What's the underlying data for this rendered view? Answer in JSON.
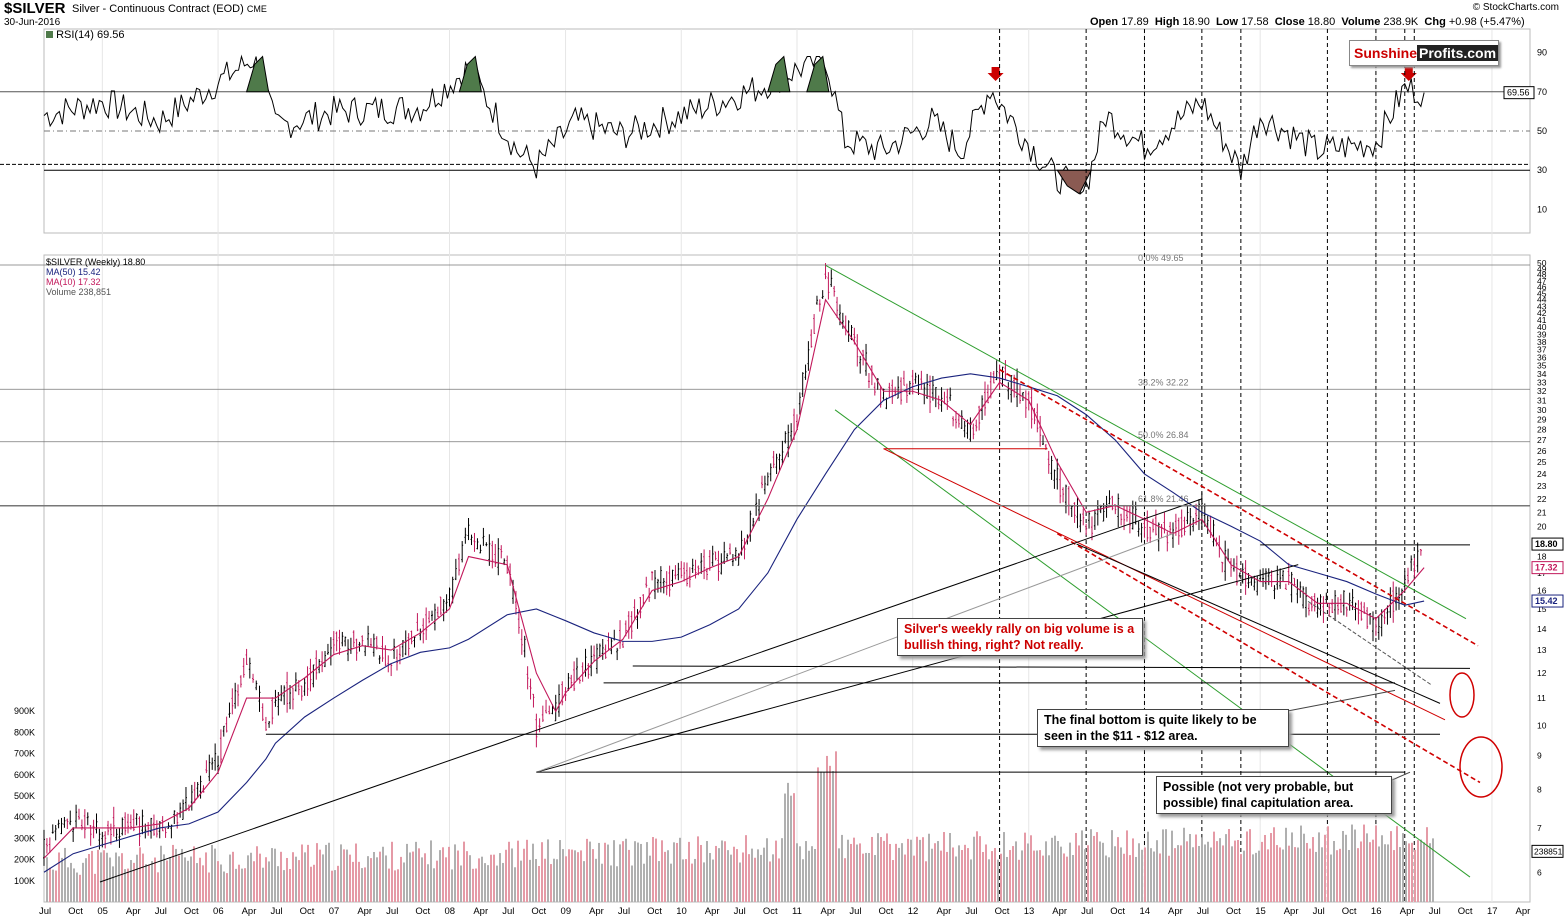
{
  "header": {
    "ticker": "$SILVER",
    "description": "Silver - Continuous Contract (EOD)",
    "exchange": "CME",
    "date": "30-Jun-2016",
    "ohlc": {
      "open_label": "Open",
      "open": "17.89",
      "high_label": "High",
      "high": "18.90",
      "low_label": "Low",
      "low": "17.58",
      "close_label": "Close",
      "close": "18.80",
      "volume_label": "Volume",
      "volume": "238.9K",
      "chg_label": "Chg",
      "chg": "+0.98 (+5.47%)"
    },
    "copyright": "© StockCharts.com"
  },
  "logo": {
    "part1": "Sunshine",
    "part2": "Profits.com"
  },
  "colors": {
    "rsi_line": "#000000",
    "overbought_fill": "#4f7a4a",
    "oversold_fill": "#8a5a52",
    "ma50": "#1a237e",
    "ma10": "#c2185b",
    "up_candle": "#000000",
    "down_candle": "#c2185b",
    "vol_up": "#b0b0b0",
    "vol_down": "#e59aa6",
    "green_channel": "#2e9e2e",
    "red_line": "#d00000",
    "arrow": "#cc0000"
  },
  "rsi_panel": {
    "legend": "RSI(14) 69.56",
    "value_tag": "69.56",
    "y_ticks": [
      "90",
      "70",
      "50",
      "30",
      "10"
    ]
  },
  "price_panel": {
    "legend": {
      "main": "$SILVER (Weekly) 18.80",
      "ma50": "MA(50) 15.42",
      "ma10": "MA(10) 17.32",
      "volume": "Volume 238,851"
    },
    "y_ticks": [
      "50",
      "49",
      "48",
      "47",
      "46",
      "45",
      "44",
      "43",
      "42",
      "41",
      "40",
      "39",
      "38",
      "37",
      "36",
      "35",
      "34",
      "33",
      "32",
      "31",
      "30",
      "29",
      "28",
      "27",
      "26",
      "25",
      "24",
      "23",
      "22",
      "21",
      "20",
      "19",
      "18",
      "17",
      "16",
      "15",
      "14",
      "13",
      "12",
      "11",
      "10",
      "9",
      "8",
      "7",
      "6"
    ],
    "price_tags": {
      "close": "18.80",
      "ma10": "17.32",
      "ma50": "15.42",
      "volume": "238851"
    },
    "fib_levels": [
      {
        "label": "0.0% 49.65",
        "price": 49.65
      },
      {
        "label": "38.2% 32.22",
        "price": 32.22
      },
      {
        "label": "50.0% 26.84",
        "price": 26.84
      },
      {
        "label": "61.8% 21.46",
        "price": 21.46
      }
    ],
    "volume_ticks": [
      "900K",
      "800K",
      "700K",
      "600K",
      "500K",
      "400K",
      "300K",
      "200K",
      "100K"
    ]
  },
  "x_axis": {
    "labels": [
      "Jul",
      "Oct",
      "05",
      "Apr",
      "Jul",
      "Oct",
      "06",
      "Apr",
      "Jul",
      "Oct",
      "07",
      "Apr",
      "Jul",
      "Oct",
      "08",
      "Apr",
      "Jul",
      "Oct",
      "09",
      "Apr",
      "Jul",
      "Oct",
      "10",
      "Apr",
      "Jul",
      "Oct",
      "11",
      "Apr",
      "Jul",
      "Oct",
      "12",
      "Apr",
      "Jul",
      "Oct",
      "13",
      "Apr",
      "Jul",
      "Oct",
      "14",
      "Apr",
      "Jul",
      "Oct",
      "15",
      "Apr",
      "Jul",
      "Oct",
      "16",
      "Apr",
      "Jul",
      "Oct",
      "17",
      "Apr"
    ]
  },
  "annotations": {
    "rally": "Silver's weekly rally on big volume is a bullish thing, right? Not really.",
    "bottom": "The final bottom is quite likely to be seen in the $11 - $12 area.",
    "capitulation": "Possible (not very probable, but possible) final capitulation area."
  },
  "chart_data": {
    "type": "line",
    "title": "$SILVER Silver - Continuous Contract (EOD)",
    "xlabel": "",
    "ylabel": "",
    "scale": "log",
    "ylim": [
      5.8,
      50
    ],
    "x": [
      "2004-07",
      "2004-10",
      "2005-01",
      "2005-04",
      "2005-07",
      "2005-10",
      "2006-01",
      "2006-04",
      "2006-06",
      "2006-07",
      "2006-10",
      "2007-01",
      "2007-04",
      "2007-07",
      "2007-10",
      "2008-01",
      "2008-03",
      "2008-07",
      "2008-10",
      "2008-12",
      "2009-01",
      "2009-04",
      "2009-07",
      "2009-10",
      "2010-01",
      "2010-04",
      "2010-07",
      "2010-10",
      "2011-01",
      "2011-04",
      "2011-07",
      "2011-10",
      "2012-01",
      "2012-04",
      "2012-07",
      "2012-10",
      "2013-01",
      "2013-04",
      "2013-07",
      "2013-10",
      "2014-01",
      "2014-04",
      "2014-07",
      "2014-10",
      "2015-01",
      "2015-04",
      "2015-07",
      "2015-10",
      "2016-01",
      "2016-04",
      "2016-06"
    ],
    "series": [
      {
        "name": "$SILVER (Weekly) 18.80",
        "values": [
          6.5,
          7.2,
          6.9,
          7.1,
          7.0,
          7.6,
          8.9,
          12.5,
          10.0,
          11.0,
          11.5,
          13.3,
          13.4,
          12.7,
          14.0,
          15.5,
          19.5,
          17.5,
          10.0,
          10.5,
          11.5,
          12.5,
          13.5,
          16.5,
          16.8,
          17.5,
          18.0,
          23.5,
          29.0,
          48.0,
          38.0,
          31.0,
          33.0,
          31.5,
          28.0,
          34.0,
          31.0,
          23.5,
          20.0,
          21.5,
          20.0,
          19.5,
          21.0,
          17.0,
          16.5,
          16.5,
          15.0,
          15.5,
          14.0,
          16.5,
          18.8
        ]
      },
      {
        "name": "MA(50) 15.42",
        "values": [
          6.0,
          6.4,
          6.6,
          6.8,
          7.0,
          7.1,
          7.4,
          8.2,
          8.9,
          9.4,
          10.3,
          11.0,
          11.7,
          12.4,
          12.9,
          13.1,
          13.5,
          14.7,
          15.0,
          14.6,
          14.4,
          13.8,
          13.4,
          13.4,
          13.6,
          14.2,
          15.0,
          17.0,
          20.5,
          24.0,
          28.0,
          31.0,
          32.5,
          33.5,
          34.0,
          33.5,
          32.5,
          31.5,
          29.5,
          27.0,
          24.0,
          22.5,
          21.0,
          20.0,
          19.0,
          17.5,
          17.0,
          16.5,
          15.8,
          15.2,
          15.42
        ]
      },
      {
        "name": "MA(10) 17.32",
        "values": [
          6.3,
          7.0,
          7.0,
          7.0,
          7.1,
          7.5,
          8.5,
          11.0,
          11.0,
          11.0,
          11.8,
          12.8,
          13.2,
          13.0,
          13.8,
          15.0,
          18.0,
          17.5,
          12.0,
          10.5,
          11.2,
          12.5,
          13.5,
          16.0,
          16.5,
          17.3,
          18.0,
          22.0,
          28.0,
          44.0,
          38.0,
          32.0,
          32.0,
          31.0,
          28.5,
          33.0,
          31.0,
          25.0,
          21.0,
          21.5,
          20.5,
          19.5,
          20.5,
          17.5,
          16.5,
          16.5,
          15.3,
          15.3,
          14.5,
          16.0,
          17.32
        ]
      }
    ]
  }
}
